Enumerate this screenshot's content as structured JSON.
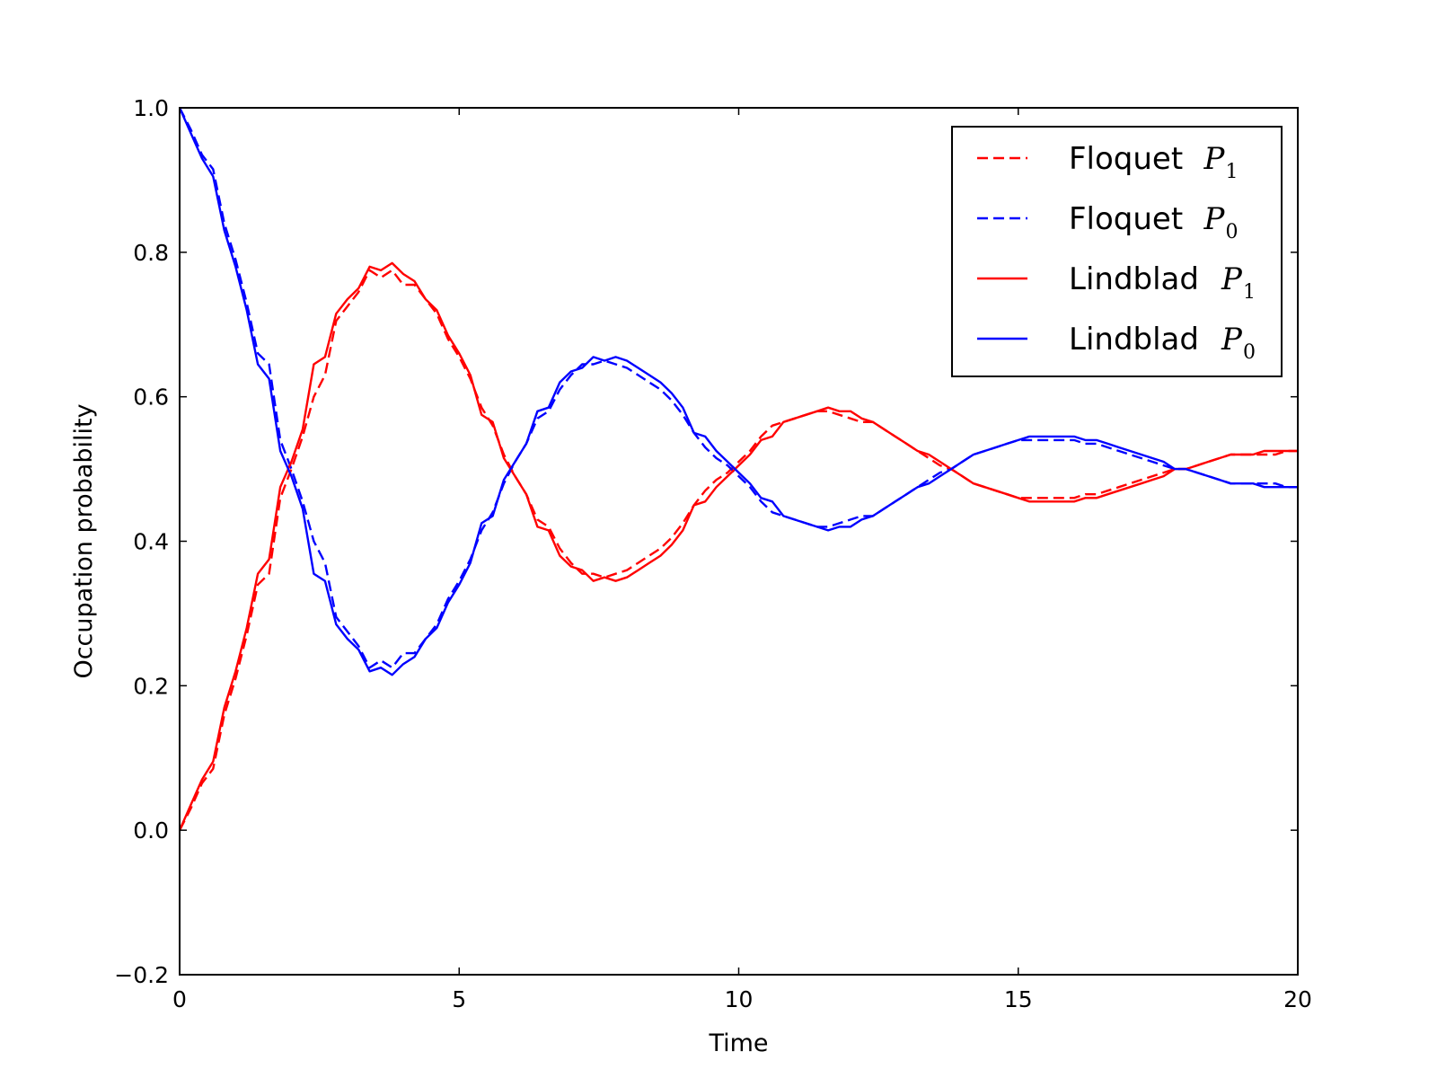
{
  "chart_data": {
    "type": "line",
    "xlabel": "Time",
    "ylabel": "Occupation probability",
    "xlim": [
      0,
      20
    ],
    "ylim": [
      -0.2,
      1.0
    ],
    "x_ticks": [
      0,
      5,
      10,
      15,
      20
    ],
    "x_tick_labels": [
      "0",
      "5",
      "10",
      "15",
      "20"
    ],
    "y_ticks": [
      -0.2,
      0.0,
      0.2,
      0.4,
      0.6,
      0.8,
      1.0
    ],
    "y_tick_labels": [
      "−0.2",
      "0.0",
      "0.2",
      "0.4",
      "0.6",
      "0.8",
      "1.0"
    ],
    "grid": false,
    "legend_position": "top-right",
    "series": [
      {
        "name": "Floquet P1",
        "legend_text": "Floquet",
        "legend_math": "P",
        "legend_sub": "1",
        "color": "#ff0000",
        "style": "dashed",
        "x": [
          0,
          0.2,
          0.4,
          0.6,
          0.8,
          1.0,
          1.2,
          1.4,
          1.6,
          1.8,
          2.0,
          2.2,
          2.4,
          2.6,
          2.8,
          3.0,
          3.2,
          3.4,
          3.6,
          3.8,
          4.0,
          4.2,
          4.4,
          4.6,
          4.8,
          5.0,
          5.2,
          5.4,
          5.6,
          5.8,
          6.0,
          6.2,
          6.4,
          6.6,
          6.8,
          7.0,
          7.2,
          7.4,
          7.6,
          7.8,
          8.0,
          8.2,
          8.4,
          8.6,
          8.8,
          9.0,
          9.2,
          9.4,
          9.6,
          9.8,
          10.0,
          10.2,
          10.4,
          10.6,
          10.8,
          11.0,
          11.2,
          11.4,
          11.6,
          11.8,
          12.0,
          12.2,
          12.4,
          12.6,
          12.8,
          13.0,
          13.2,
          13.4,
          13.6,
          13.8,
          14.0,
          14.2,
          14.4,
          14.6,
          14.8,
          15.0,
          15.2,
          15.4,
          15.6,
          15.8,
          16.0,
          16.2,
          16.4,
          16.6,
          16.8,
          17.0,
          17.2,
          17.4,
          17.6,
          17.8,
          18.0,
          18.2,
          18.4,
          18.6,
          18.8,
          19.0,
          19.2,
          19.4,
          19.6,
          19.8,
          20.0
        ],
        "y": [
          0.0,
          0.03,
          0.065,
          0.085,
          0.16,
          0.21,
          0.27,
          0.34,
          0.355,
          0.46,
          0.5,
          0.545,
          0.6,
          0.63,
          0.705,
          0.725,
          0.745,
          0.775,
          0.765,
          0.775,
          0.755,
          0.755,
          0.735,
          0.715,
          0.68,
          0.655,
          0.625,
          0.585,
          0.56,
          0.52,
          0.49,
          0.465,
          0.43,
          0.42,
          0.39,
          0.37,
          0.355,
          0.355,
          0.35,
          0.355,
          0.36,
          0.37,
          0.38,
          0.39,
          0.405,
          0.425,
          0.45,
          0.47,
          0.485,
          0.495,
          0.51,
          0.525,
          0.545,
          0.56,
          0.565,
          0.57,
          0.575,
          0.58,
          0.58,
          0.575,
          0.57,
          0.565,
          0.565,
          0.555,
          0.545,
          0.535,
          0.525,
          0.515,
          0.505,
          0.5,
          0.49,
          0.48,
          0.475,
          0.47,
          0.465,
          0.46,
          0.46,
          0.46,
          0.46,
          0.46,
          0.46,
          0.465,
          0.465,
          0.47,
          0.475,
          0.48,
          0.485,
          0.49,
          0.495,
          0.5,
          0.5,
          0.505,
          0.51,
          0.515,
          0.52,
          0.52,
          0.52,
          0.52,
          0.52,
          0.525,
          0.525
        ]
      },
      {
        "name": "Floquet P0",
        "legend_text": "Floquet",
        "legend_math": "P",
        "legend_sub": "0",
        "color": "#0000ff",
        "style": "dashed",
        "x": [
          0,
          0.2,
          0.4,
          0.6,
          0.8,
          1.0,
          1.2,
          1.4,
          1.6,
          1.8,
          2.0,
          2.2,
          2.4,
          2.6,
          2.8,
          3.0,
          3.2,
          3.4,
          3.6,
          3.8,
          4.0,
          4.2,
          4.4,
          4.6,
          4.8,
          5.0,
          5.2,
          5.4,
          5.6,
          5.8,
          6.0,
          6.2,
          6.4,
          6.6,
          6.8,
          7.0,
          7.2,
          7.4,
          7.6,
          7.8,
          8.0,
          8.2,
          8.4,
          8.6,
          8.8,
          9.0,
          9.2,
          9.4,
          9.6,
          9.8,
          10.0,
          10.2,
          10.4,
          10.6,
          10.8,
          11.0,
          11.2,
          11.4,
          11.6,
          11.8,
          12.0,
          12.2,
          12.4,
          12.6,
          12.8,
          13.0,
          13.2,
          13.4,
          13.6,
          13.8,
          14.0,
          14.2,
          14.4,
          14.6,
          14.8,
          15.0,
          15.2,
          15.4,
          15.6,
          15.8,
          16.0,
          16.2,
          16.4,
          16.6,
          16.8,
          17.0,
          17.2,
          17.4,
          17.6,
          17.8,
          18.0,
          18.2,
          18.4,
          18.6,
          18.8,
          19.0,
          19.2,
          19.4,
          19.6,
          19.8,
          20.0
        ],
        "y": [
          1.0,
          0.97,
          0.935,
          0.915,
          0.84,
          0.79,
          0.73,
          0.66,
          0.645,
          0.54,
          0.5,
          0.455,
          0.4,
          0.37,
          0.295,
          0.275,
          0.255,
          0.225,
          0.235,
          0.225,
          0.245,
          0.245,
          0.265,
          0.285,
          0.32,
          0.345,
          0.375,
          0.415,
          0.44,
          0.48,
          0.51,
          0.535,
          0.57,
          0.58,
          0.61,
          0.63,
          0.645,
          0.645,
          0.65,
          0.645,
          0.64,
          0.63,
          0.62,
          0.61,
          0.595,
          0.575,
          0.55,
          0.53,
          0.515,
          0.505,
          0.49,
          0.475,
          0.455,
          0.44,
          0.435,
          0.43,
          0.425,
          0.42,
          0.42,
          0.425,
          0.43,
          0.435,
          0.435,
          0.445,
          0.455,
          0.465,
          0.475,
          0.485,
          0.495,
          0.5,
          0.51,
          0.52,
          0.525,
          0.53,
          0.535,
          0.54,
          0.54,
          0.54,
          0.54,
          0.54,
          0.54,
          0.535,
          0.535,
          0.53,
          0.525,
          0.52,
          0.515,
          0.51,
          0.505,
          0.5,
          0.5,
          0.495,
          0.49,
          0.485,
          0.48,
          0.48,
          0.48,
          0.48,
          0.48,
          0.475,
          0.475
        ]
      },
      {
        "name": "Lindblad P1",
        "legend_text": "Lindblad",
        "legend_math": "P",
        "legend_sub": "1",
        "color": "#ff0000",
        "style": "solid",
        "x": [
          0,
          0.2,
          0.4,
          0.6,
          0.8,
          1.0,
          1.2,
          1.4,
          1.6,
          1.8,
          2.0,
          2.2,
          2.4,
          2.6,
          2.8,
          3.0,
          3.2,
          3.4,
          3.6,
          3.8,
          4.0,
          4.2,
          4.4,
          4.6,
          4.8,
          5.0,
          5.2,
          5.4,
          5.6,
          5.8,
          6.0,
          6.2,
          6.4,
          6.6,
          6.8,
          7.0,
          7.2,
          7.4,
          7.6,
          7.8,
          8.0,
          8.2,
          8.4,
          8.6,
          8.8,
          9.0,
          9.2,
          9.4,
          9.6,
          9.8,
          10.0,
          10.2,
          10.4,
          10.6,
          10.8,
          11.0,
          11.2,
          11.4,
          11.6,
          11.8,
          12.0,
          12.2,
          12.4,
          12.6,
          12.8,
          13.0,
          13.2,
          13.4,
          13.6,
          13.8,
          14.0,
          14.2,
          14.4,
          14.6,
          14.8,
          15.0,
          15.2,
          15.4,
          15.6,
          15.8,
          16.0,
          16.2,
          16.4,
          16.6,
          16.8,
          17.0,
          17.2,
          17.4,
          17.6,
          17.8,
          18.0,
          18.2,
          18.4,
          18.6,
          18.8,
          19.0,
          19.2,
          19.4,
          19.6,
          19.8,
          20.0
        ],
        "y": [
          0.0,
          0.035,
          0.07,
          0.095,
          0.17,
          0.22,
          0.28,
          0.355,
          0.375,
          0.475,
          0.51,
          0.555,
          0.645,
          0.655,
          0.715,
          0.735,
          0.75,
          0.78,
          0.775,
          0.785,
          0.77,
          0.76,
          0.735,
          0.72,
          0.685,
          0.66,
          0.63,
          0.575,
          0.565,
          0.515,
          0.49,
          0.465,
          0.42,
          0.415,
          0.38,
          0.365,
          0.36,
          0.345,
          0.35,
          0.345,
          0.35,
          0.36,
          0.37,
          0.38,
          0.395,
          0.415,
          0.45,
          0.455,
          0.475,
          0.49,
          0.505,
          0.52,
          0.54,
          0.545,
          0.565,
          0.57,
          0.575,
          0.58,
          0.585,
          0.58,
          0.58,
          0.57,
          0.565,
          0.555,
          0.545,
          0.535,
          0.525,
          0.52,
          0.51,
          0.5,
          0.49,
          0.48,
          0.475,
          0.47,
          0.465,
          0.46,
          0.455,
          0.455,
          0.455,
          0.455,
          0.455,
          0.46,
          0.46,
          0.465,
          0.47,
          0.475,
          0.48,
          0.485,
          0.49,
          0.5,
          0.5,
          0.505,
          0.51,
          0.515,
          0.52,
          0.52,
          0.52,
          0.525,
          0.525,
          0.525,
          0.525
        ]
      },
      {
        "name": "Lindblad P0",
        "legend_text": "Lindblad",
        "legend_math": "P",
        "legend_sub": "0",
        "color": "#0000ff",
        "style": "solid",
        "x": [
          0,
          0.2,
          0.4,
          0.6,
          0.8,
          1.0,
          1.2,
          1.4,
          1.6,
          1.8,
          2.0,
          2.2,
          2.4,
          2.6,
          2.8,
          3.0,
          3.2,
          3.4,
          3.6,
          3.8,
          4.0,
          4.2,
          4.4,
          4.6,
          4.8,
          5.0,
          5.2,
          5.4,
          5.6,
          5.8,
          6.0,
          6.2,
          6.4,
          6.6,
          6.8,
          7.0,
          7.2,
          7.4,
          7.6,
          7.8,
          8.0,
          8.2,
          8.4,
          8.6,
          8.8,
          9.0,
          9.2,
          9.4,
          9.6,
          9.8,
          10.0,
          10.2,
          10.4,
          10.6,
          10.8,
          11.0,
          11.2,
          11.4,
          11.6,
          11.8,
          12.0,
          12.2,
          12.4,
          12.6,
          12.8,
          13.0,
          13.2,
          13.4,
          13.6,
          13.8,
          14.0,
          14.2,
          14.4,
          14.6,
          14.8,
          15.0,
          15.2,
          15.4,
          15.6,
          15.8,
          16.0,
          16.2,
          16.4,
          16.6,
          16.8,
          17.0,
          17.2,
          17.4,
          17.6,
          17.8,
          18.0,
          18.2,
          18.4,
          18.6,
          18.8,
          19.0,
          19.2,
          19.4,
          19.6,
          19.8,
          20.0
        ],
        "y": [
          1.0,
          0.965,
          0.93,
          0.905,
          0.83,
          0.78,
          0.72,
          0.645,
          0.625,
          0.525,
          0.49,
          0.445,
          0.355,
          0.345,
          0.285,
          0.265,
          0.25,
          0.22,
          0.225,
          0.215,
          0.23,
          0.24,
          0.265,
          0.28,
          0.315,
          0.34,
          0.37,
          0.425,
          0.435,
          0.485,
          0.51,
          0.535,
          0.58,
          0.585,
          0.62,
          0.635,
          0.64,
          0.655,
          0.65,
          0.655,
          0.65,
          0.64,
          0.63,
          0.62,
          0.605,
          0.585,
          0.55,
          0.545,
          0.525,
          0.51,
          0.495,
          0.48,
          0.46,
          0.455,
          0.435,
          0.43,
          0.425,
          0.42,
          0.415,
          0.42,
          0.42,
          0.43,
          0.435,
          0.445,
          0.455,
          0.465,
          0.475,
          0.48,
          0.49,
          0.5,
          0.51,
          0.52,
          0.525,
          0.53,
          0.535,
          0.54,
          0.545,
          0.545,
          0.545,
          0.545,
          0.545,
          0.54,
          0.54,
          0.535,
          0.53,
          0.525,
          0.52,
          0.515,
          0.51,
          0.5,
          0.5,
          0.495,
          0.49,
          0.485,
          0.48,
          0.48,
          0.48,
          0.475,
          0.475,
          0.475,
          0.475
        ]
      }
    ]
  }
}
